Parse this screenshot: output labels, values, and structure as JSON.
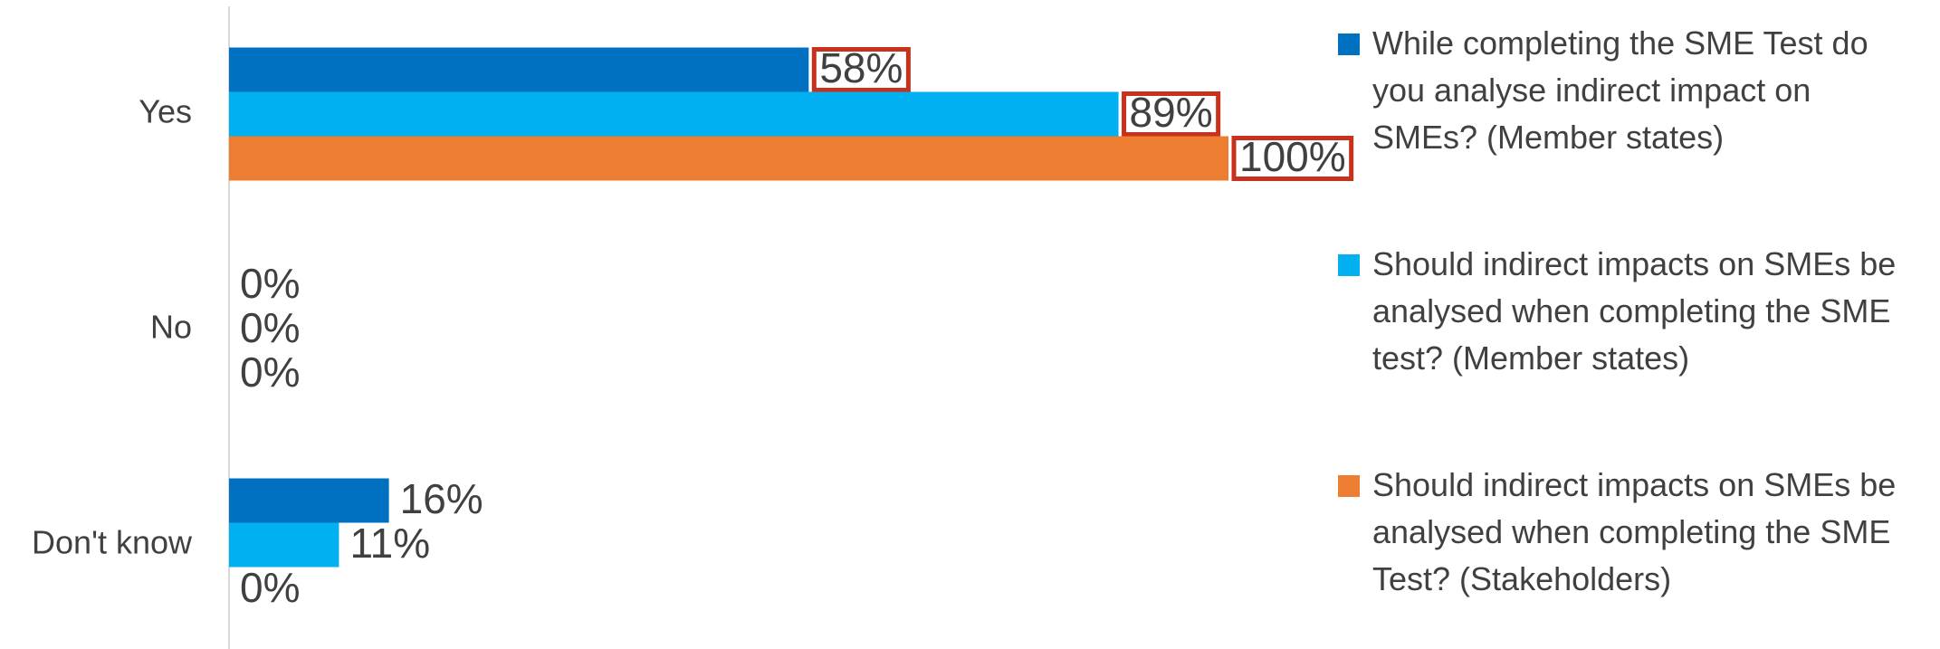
{
  "chart_data": {
    "type": "hbar",
    "categories": [
      "Yes",
      "No",
      "Don't know"
    ],
    "xlim": [
      0,
      100
    ],
    "legend": "right",
    "series": [
      {
        "name": "While completing the SME Test do you analyse indirect impact on SMEs? (Member states)",
        "color": "#0070c0",
        "values": [
          58,
          0,
          16
        ],
        "value_labels": [
          "58%",
          "0%",
          "16%"
        ]
      },
      {
        "name": "Should indirect impacts on SMEs be analysed when completing the SME test? (Member states)",
        "color": "#00b0f0",
        "values": [
          89,
          0,
          11
        ],
        "value_labels": [
          "89%",
          "0%",
          "11%"
        ]
      },
      {
        "name": "Should indirect impacts on SMEs be analysed when completing the SME Test? (Stakeholders)",
        "color": "#ed7d31",
        "values": [
          100,
          0,
          0
        ],
        "value_labels": [
          "100%",
          "0%",
          "0%"
        ]
      }
    ]
  }
}
